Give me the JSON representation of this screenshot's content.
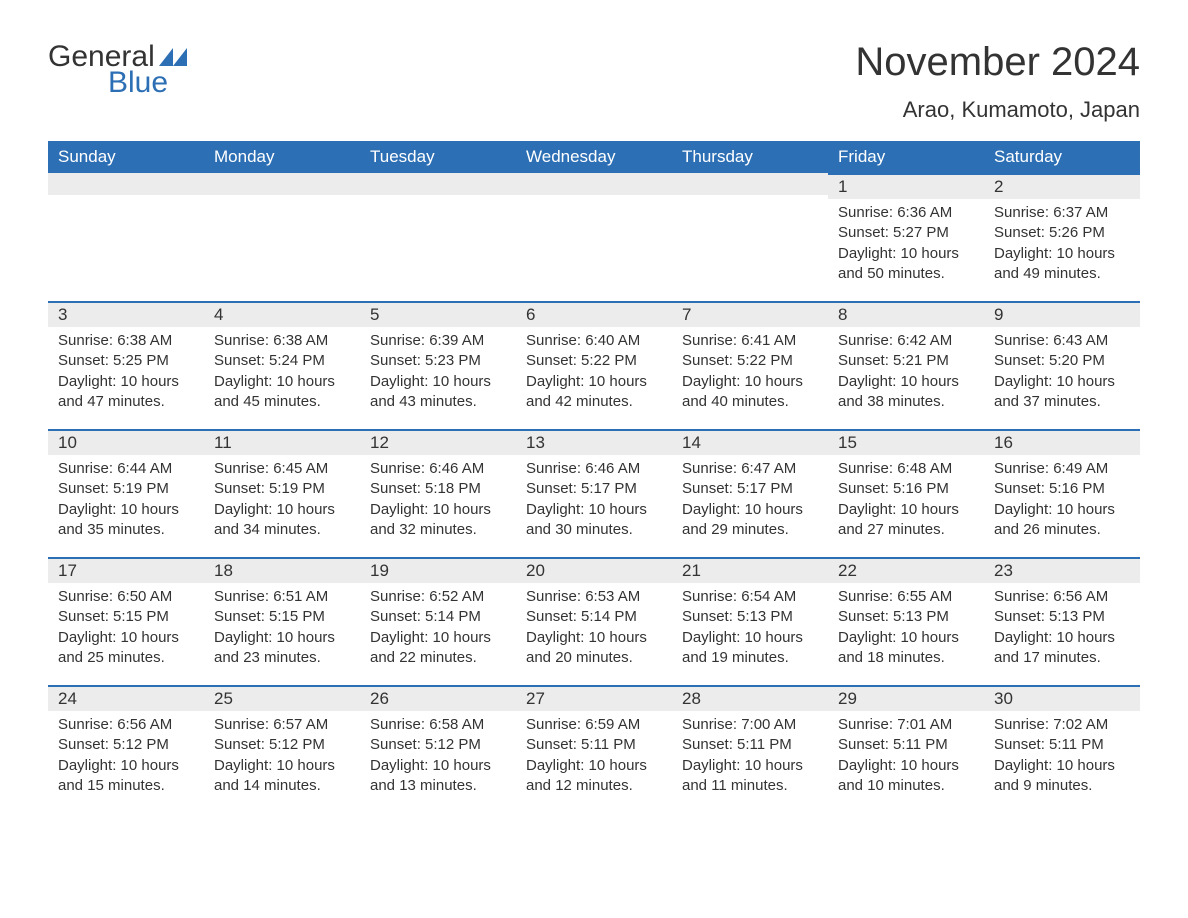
{
  "brand": {
    "text1": "General",
    "text2": "Blue",
    "accent": "#2d6fb4"
  },
  "title": "November 2024",
  "location": "Arao, Kumamoto, Japan",
  "colors": {
    "header_bg": "#2d6fb4",
    "header_fg": "#ffffff",
    "daynum_bg": "#ececec",
    "row_border": "#2d6fb4",
    "page_bg": "#ffffff",
    "text": "#333333"
  },
  "calendar": {
    "type": "table",
    "columns": [
      "Sunday",
      "Monday",
      "Tuesday",
      "Wednesday",
      "Thursday",
      "Friday",
      "Saturday"
    ],
    "font_size_header": 17,
    "font_size_daynum": 17,
    "font_size_body": 15,
    "weeks": [
      [
        null,
        null,
        null,
        null,
        null,
        {
          "n": "1",
          "sunrise": "6:36 AM",
          "sunset": "5:27 PM",
          "daylight": "10 hours and 50 minutes."
        },
        {
          "n": "2",
          "sunrise": "6:37 AM",
          "sunset": "5:26 PM",
          "daylight": "10 hours and 49 minutes."
        }
      ],
      [
        {
          "n": "3",
          "sunrise": "6:38 AM",
          "sunset": "5:25 PM",
          "daylight": "10 hours and 47 minutes."
        },
        {
          "n": "4",
          "sunrise": "6:38 AM",
          "sunset": "5:24 PM",
          "daylight": "10 hours and 45 minutes."
        },
        {
          "n": "5",
          "sunrise": "6:39 AM",
          "sunset": "5:23 PM",
          "daylight": "10 hours and 43 minutes."
        },
        {
          "n": "6",
          "sunrise": "6:40 AM",
          "sunset": "5:22 PM",
          "daylight": "10 hours and 42 minutes."
        },
        {
          "n": "7",
          "sunrise": "6:41 AM",
          "sunset": "5:22 PM",
          "daylight": "10 hours and 40 minutes."
        },
        {
          "n": "8",
          "sunrise": "6:42 AM",
          "sunset": "5:21 PM",
          "daylight": "10 hours and 38 minutes."
        },
        {
          "n": "9",
          "sunrise": "6:43 AM",
          "sunset": "5:20 PM",
          "daylight": "10 hours and 37 minutes."
        }
      ],
      [
        {
          "n": "10",
          "sunrise": "6:44 AM",
          "sunset": "5:19 PM",
          "daylight": "10 hours and 35 minutes."
        },
        {
          "n": "11",
          "sunrise": "6:45 AM",
          "sunset": "5:19 PM",
          "daylight": "10 hours and 34 minutes."
        },
        {
          "n": "12",
          "sunrise": "6:46 AM",
          "sunset": "5:18 PM",
          "daylight": "10 hours and 32 minutes."
        },
        {
          "n": "13",
          "sunrise": "6:46 AM",
          "sunset": "5:17 PM",
          "daylight": "10 hours and 30 minutes."
        },
        {
          "n": "14",
          "sunrise": "6:47 AM",
          "sunset": "5:17 PM",
          "daylight": "10 hours and 29 minutes."
        },
        {
          "n": "15",
          "sunrise": "6:48 AM",
          "sunset": "5:16 PM",
          "daylight": "10 hours and 27 minutes."
        },
        {
          "n": "16",
          "sunrise": "6:49 AM",
          "sunset": "5:16 PM",
          "daylight": "10 hours and 26 minutes."
        }
      ],
      [
        {
          "n": "17",
          "sunrise": "6:50 AM",
          "sunset": "5:15 PM",
          "daylight": "10 hours and 25 minutes."
        },
        {
          "n": "18",
          "sunrise": "6:51 AM",
          "sunset": "5:15 PM",
          "daylight": "10 hours and 23 minutes."
        },
        {
          "n": "19",
          "sunrise": "6:52 AM",
          "sunset": "5:14 PM",
          "daylight": "10 hours and 22 minutes."
        },
        {
          "n": "20",
          "sunrise": "6:53 AM",
          "sunset": "5:14 PM",
          "daylight": "10 hours and 20 minutes."
        },
        {
          "n": "21",
          "sunrise": "6:54 AM",
          "sunset": "5:13 PM",
          "daylight": "10 hours and 19 minutes."
        },
        {
          "n": "22",
          "sunrise": "6:55 AM",
          "sunset": "5:13 PM",
          "daylight": "10 hours and 18 minutes."
        },
        {
          "n": "23",
          "sunrise": "6:56 AM",
          "sunset": "5:13 PM",
          "daylight": "10 hours and 17 minutes."
        }
      ],
      [
        {
          "n": "24",
          "sunrise": "6:56 AM",
          "sunset": "5:12 PM",
          "daylight": "10 hours and 15 minutes."
        },
        {
          "n": "25",
          "sunrise": "6:57 AM",
          "sunset": "5:12 PM",
          "daylight": "10 hours and 14 minutes."
        },
        {
          "n": "26",
          "sunrise": "6:58 AM",
          "sunset": "5:12 PM",
          "daylight": "10 hours and 13 minutes."
        },
        {
          "n": "27",
          "sunrise": "6:59 AM",
          "sunset": "5:11 PM",
          "daylight": "10 hours and 12 minutes."
        },
        {
          "n": "28",
          "sunrise": "7:00 AM",
          "sunset": "5:11 PM",
          "daylight": "10 hours and 11 minutes."
        },
        {
          "n": "29",
          "sunrise": "7:01 AM",
          "sunset": "5:11 PM",
          "daylight": "10 hours and 10 minutes."
        },
        {
          "n": "30",
          "sunrise": "7:02 AM",
          "sunset": "5:11 PM",
          "daylight": "10 hours and 9 minutes."
        }
      ]
    ],
    "labels": {
      "sunrise": "Sunrise: ",
      "sunset": "Sunset: ",
      "daylight": "Daylight: "
    }
  }
}
